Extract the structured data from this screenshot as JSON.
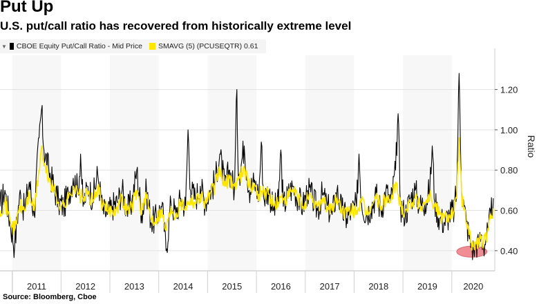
{
  "header": {
    "title": "Put Up",
    "subtitle": "U.S. put/call ratio has recovered from historically extreme level"
  },
  "legend": {
    "sort_icon": "sort-icon",
    "item1": "CBOE Equity Put/Call Ratio - Mid Price",
    "item2": "SMAVG (5) (PCUSEQTR) 0.61"
  },
  "source": "Source: Bloomberg, Cboe",
  "colors": {
    "raw_series": "#000000",
    "sma_series": "#ffe600",
    "highlight": "#f08d94",
    "background": "#ffffff"
  },
  "chart_data": {
    "type": "line",
    "title": "Put Up",
    "ylabel": "Ratio",
    "xlabel": "",
    "ylim": [
      0.3,
      1.37
    ],
    "yticks": [
      0.4,
      0.6,
      0.8,
      1.0,
      1.2
    ],
    "ytick_labels": [
      "0.40",
      "0.60",
      "0.80",
      "1.00",
      "1.20"
    ],
    "xlim": [
      2010.75,
      2020.88
    ],
    "years": [
      "2011",
      "2012",
      "2013",
      "2014",
      "2015",
      "2016",
      "2017",
      "2018",
      "2019",
      "2020"
    ],
    "series": [
      {
        "name": "CBOE Equity Put/Call Ratio - Mid Price",
        "color": "#000000",
        "x": [
          2010.75,
          2010.85,
          2010.95,
          2011.05,
          2011.15,
          2011.25,
          2011.35,
          2011.45,
          2011.55,
          2011.6,
          2011.65,
          2011.75,
          2011.85,
          2011.95,
          2012.05,
          2012.15,
          2012.25,
          2012.35,
          2012.4,
          2012.45,
          2012.55,
          2012.65,
          2012.75,
          2012.85,
          2012.95,
          2013.05,
          2013.15,
          2013.25,
          2013.35,
          2013.45,
          2013.55,
          2013.65,
          2013.75,
          2013.85,
          2013.95,
          2014.05,
          2014.1,
          2014.15,
          2014.25,
          2014.35,
          2014.45,
          2014.55,
          2014.6,
          2014.65,
          2014.75,
          2014.85,
          2014.95,
          2015.05,
          2015.15,
          2015.25,
          2015.35,
          2015.45,
          2015.55,
          2015.6,
          2015.62,
          2015.65,
          2015.75,
          2015.85,
          2015.95,
          2016.05,
          2016.1,
          2016.15,
          2016.25,
          2016.35,
          2016.45,
          2016.5,
          2016.55,
          2016.65,
          2016.75,
          2016.85,
          2016.95,
          2017.05,
          2017.15,
          2017.25,
          2017.35,
          2017.45,
          2017.55,
          2017.65,
          2017.75,
          2017.85,
          2017.95,
          2018.05,
          2018.1,
          2018.15,
          2018.25,
          2018.35,
          2018.45,
          2018.55,
          2018.65,
          2018.75,
          2018.85,
          2018.9,
          2018.95,
          2019.05,
          2019.15,
          2019.25,
          2019.35,
          2019.45,
          2019.55,
          2019.6,
          2019.65,
          2019.75,
          2019.85,
          2019.95,
          2020.05,
          2020.1,
          2020.15,
          2020.2,
          2020.25,
          2020.3,
          2020.35,
          2020.4,
          2020.45,
          2020.5,
          2020.55,
          2020.6,
          2020.65,
          2020.7,
          2020.75,
          2020.8,
          2020.85
        ],
        "values": [
          0.62,
          0.7,
          0.55,
          0.42,
          0.68,
          0.6,
          0.74,
          0.58,
          0.96,
          1.1,
          0.9,
          0.8,
          0.72,
          0.64,
          0.62,
          0.68,
          0.76,
          0.7,
          0.88,
          0.62,
          0.72,
          0.66,
          0.78,
          0.6,
          0.58,
          0.62,
          0.64,
          0.7,
          0.6,
          0.64,
          0.8,
          0.58,
          0.7,
          0.54,
          0.56,
          0.62,
          0.56,
          0.4,
          0.64,
          0.58,
          0.66,
          0.62,
          1.0,
          0.7,
          0.66,
          0.72,
          0.64,
          0.7,
          0.74,
          0.88,
          0.72,
          0.8,
          0.7,
          1.2,
          0.86,
          0.78,
          0.92,
          0.7,
          0.74,
          0.68,
          0.94,
          0.66,
          0.7,
          0.6,
          0.64,
          0.9,
          0.62,
          0.68,
          0.72,
          0.66,
          0.62,
          0.7,
          0.66,
          0.6,
          0.68,
          0.62,
          0.58,
          0.7,
          0.6,
          0.56,
          0.6,
          0.62,
          0.88,
          0.64,
          0.58,
          0.62,
          0.68,
          0.6,
          0.7,
          0.64,
          0.8,
          1.08,
          0.62,
          0.58,
          0.66,
          0.7,
          0.62,
          0.64,
          0.7,
          0.92,
          0.64,
          0.56,
          0.54,
          0.58,
          0.6,
          0.7,
          1.28,
          0.7,
          0.62,
          0.54,
          0.48,
          0.42,
          0.4,
          0.44,
          0.42,
          0.48,
          0.42,
          0.46,
          0.5,
          0.58,
          0.66
        ]
      },
      {
        "name": "SMAVG (5) (PCUSEQTR)",
        "color": "#ffe600",
        "last_value": 0.61,
        "x": [
          2010.75,
          2010.85,
          2010.95,
          2011.05,
          2011.15,
          2011.25,
          2011.35,
          2011.45,
          2011.55,
          2011.6,
          2011.65,
          2011.75,
          2011.85,
          2011.95,
          2012.05,
          2012.15,
          2012.25,
          2012.35,
          2012.45,
          2012.55,
          2012.65,
          2012.75,
          2012.85,
          2012.95,
          2013.05,
          2013.15,
          2013.25,
          2013.35,
          2013.45,
          2013.55,
          2013.65,
          2013.75,
          2013.85,
          2013.95,
          2014.05,
          2014.15,
          2014.25,
          2014.35,
          2014.45,
          2014.55,
          2014.65,
          2014.75,
          2014.85,
          2014.95,
          2015.05,
          2015.15,
          2015.25,
          2015.35,
          2015.45,
          2015.55,
          2015.65,
          2015.75,
          2015.85,
          2015.95,
          2016.05,
          2016.15,
          2016.25,
          2016.35,
          2016.45,
          2016.55,
          2016.65,
          2016.75,
          2016.85,
          2016.95,
          2017.05,
          2017.15,
          2017.25,
          2017.35,
          2017.45,
          2017.55,
          2017.65,
          2017.75,
          2017.85,
          2017.95,
          2018.05,
          2018.15,
          2018.25,
          2018.35,
          2018.45,
          2018.55,
          2018.65,
          2018.75,
          2018.85,
          2018.95,
          2019.05,
          2019.15,
          2019.25,
          2019.35,
          2019.45,
          2019.55,
          2019.65,
          2019.75,
          2019.85,
          2019.95,
          2020.05,
          2020.1,
          2020.15,
          2020.2,
          2020.25,
          2020.3,
          2020.35,
          2020.4,
          2020.45,
          2020.5,
          2020.55,
          2020.6,
          2020.65,
          2020.7,
          2020.75,
          2020.8,
          2020.85
        ],
        "values": [
          0.6,
          0.64,
          0.56,
          0.5,
          0.62,
          0.6,
          0.68,
          0.6,
          0.8,
          0.92,
          0.82,
          0.76,
          0.7,
          0.64,
          0.62,
          0.66,
          0.72,
          0.68,
          0.66,
          0.68,
          0.64,
          0.72,
          0.62,
          0.6,
          0.6,
          0.62,
          0.66,
          0.6,
          0.62,
          0.7,
          0.6,
          0.66,
          0.56,
          0.56,
          0.6,
          0.5,
          0.62,
          0.58,
          0.64,
          0.62,
          0.66,
          0.64,
          0.68,
          0.64,
          0.68,
          0.72,
          0.8,
          0.72,
          0.76,
          0.72,
          0.76,
          0.82,
          0.72,
          0.72,
          0.68,
          0.7,
          0.68,
          0.62,
          0.64,
          0.66,
          0.66,
          0.7,
          0.66,
          0.62,
          0.66,
          0.64,
          0.62,
          0.66,
          0.62,
          0.6,
          0.66,
          0.6,
          0.58,
          0.6,
          0.6,
          0.64,
          0.58,
          0.62,
          0.66,
          0.62,
          0.66,
          0.64,
          0.74,
          0.62,
          0.6,
          0.64,
          0.66,
          0.62,
          0.64,
          0.68,
          0.62,
          0.58,
          0.56,
          0.58,
          0.6,
          0.66,
          0.96,
          0.68,
          0.6,
          0.54,
          0.48,
          0.44,
          0.42,
          0.44,
          0.44,
          0.46,
          0.44,
          0.46,
          0.5,
          0.56,
          0.61
        ]
      }
    ],
    "annotations": [
      {
        "type": "ellipse-highlight",
        "x_range": [
          2020.1,
          2020.72
        ],
        "y": 0.395
      }
    ]
  }
}
